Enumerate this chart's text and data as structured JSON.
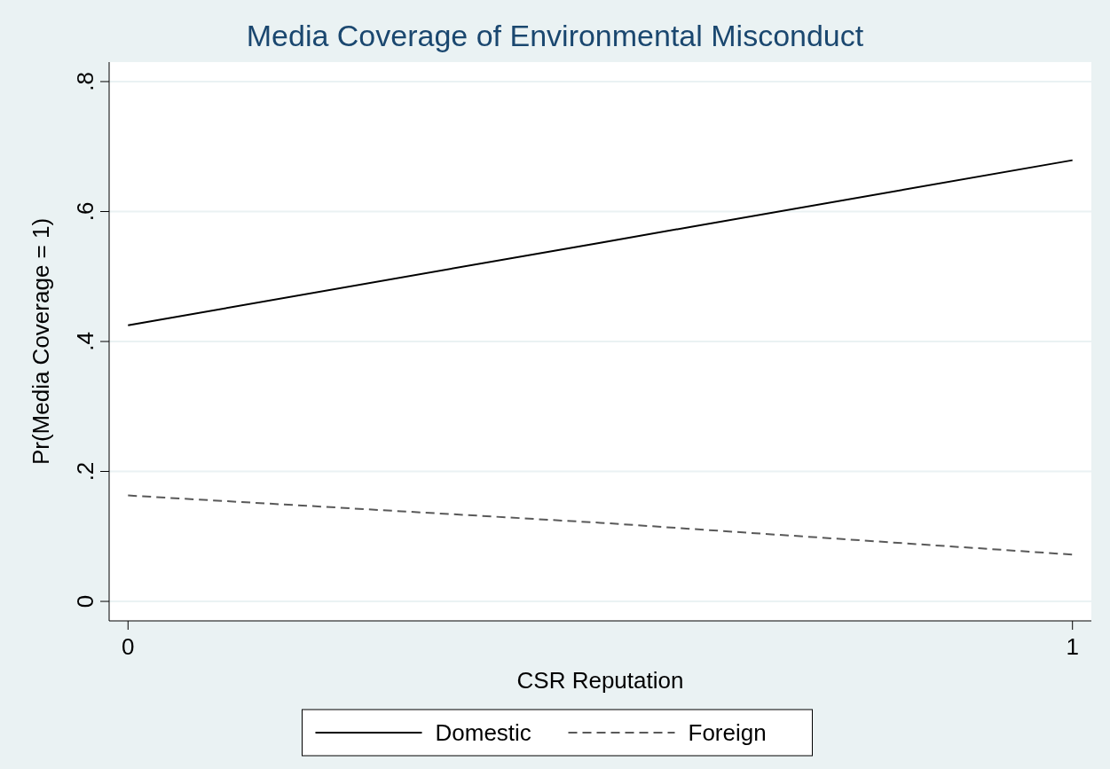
{
  "chart_data": {
    "type": "line",
    "title": "Media Coverage of Environmental Misconduct",
    "xlabel": "CSR Reputation",
    "ylabel": "Pr(Media Coverage = 1)",
    "x": [
      0,
      0.5,
      1
    ],
    "series": [
      {
        "name": "Domestic",
        "color": "#000000",
        "values": [
          0.425,
          0.552,
          0.679
        ],
        "line_style": "solid"
      },
      {
        "name": "Foreign",
        "color": "#595959",
        "values": [
          0.163,
          0.121,
          0.072
        ],
        "line_style": "dashed"
      }
    ],
    "xlim": [
      -0.02,
      1.02
    ],
    "ylim": [
      -0.03,
      0.83
    ],
    "xticks": [
      0,
      1
    ],
    "yticks": [
      0,
      {
        "value": 0.2,
        "label": ".2"
      },
      {
        "value": 0.4,
        "label": ".4"
      },
      {
        "value": 0.6,
        "label": ".6"
      },
      {
        "value": 0.8,
        "label": ".8"
      }
    ],
    "grid": "y",
    "legend": "bottom",
    "marker": "none"
  }
}
